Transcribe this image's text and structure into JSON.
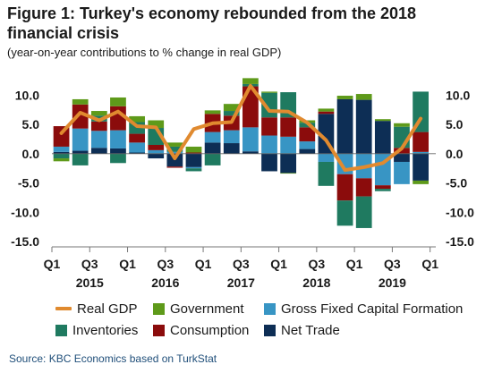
{
  "header": {
    "title": "Figure 1: Turkey's economy rebounded from the 2018 financial crisis",
    "subtitle": "(year-on-year contributions to % change in real GDP)"
  },
  "source": "Source: KBC Economics based on TurkStat",
  "colors": {
    "real_gdp": "#e08a2f",
    "government": "#5e9a1a",
    "gfcf": "#3895c4",
    "inventories": "#1f7a60",
    "consumption": "#8b0c0c",
    "net_trade": "#0d2e55"
  },
  "chart_data": {
    "type": "bar",
    "title": "Figure 1: Turkey's economy rebounded from the 2018 financial crisis",
    "subtitle": "(year-on-year contributions to % change in real GDP)",
    "stacked": true,
    "ylim": [
      -15,
      12.5
    ],
    "yticks": [
      10.0,
      5.0,
      0.0,
      -5.0,
      -10.0,
      -15.0
    ],
    "ytick_labels": [
      "10.0",
      "5.0",
      "0.0",
      "-5.0",
      "-10.0",
      "-15.0"
    ],
    "dual_y_axis": true,
    "grid": false,
    "x_tick_labels": [
      "Q1",
      "Q3",
      "Q1",
      "Q3",
      "Q1",
      "Q3",
      "Q1",
      "Q3",
      "Q1",
      "Q3",
      "Q1"
    ],
    "year_labels": [
      "2015",
      "2016",
      "2017",
      "2018",
      "2019"
    ],
    "categories": [
      "2015Q1",
      "2015Q2",
      "2015Q3",
      "2015Q4",
      "2016Q1",
      "2016Q2",
      "2016Q3",
      "2016Q4",
      "2017Q1",
      "2017Q2",
      "2017Q3",
      "2017Q4",
      "2018Q1",
      "2018Q2",
      "2018Q3",
      "2018Q4",
      "2019Q1",
      "2019Q2",
      "2019Q3",
      "2019Q4"
    ],
    "legend_position": "bottom",
    "series": [
      {
        "name": "Net Trade",
        "key": "net_trade",
        "kind": "bar",
        "values": [
          0.3,
          0.5,
          1.0,
          0.9,
          0.2,
          -0.8,
          -2.2,
          -2.3,
          1.9,
          1.8,
          0.4,
          -3.0,
          -3.3,
          0.8,
          6.8,
          9.3,
          9.2,
          5.6,
          -1.4,
          -4.6
        ]
      },
      {
        "name": "Gross Fixed Capital Formation",
        "key": "gfcf",
        "kind": "bar",
        "values": [
          0.9,
          3.8,
          2.9,
          3.1,
          1.7,
          0.6,
          0.3,
          -0.2,
          1.8,
          2.2,
          4.1,
          3.1,
          2.9,
          1.3,
          -1.4,
          -3.5,
          -4.2,
          -5.4,
          -3.8,
          0.3
        ]
      },
      {
        "name": "Consumption",
        "key": "consumption",
        "kind": "bar",
        "values": [
          3.5,
          4.1,
          1.6,
          4.1,
          1.5,
          0.9,
          -0.2,
          0.2,
          3.1,
          2.5,
          7.0,
          3.1,
          3.3,
          2.4,
          0.4,
          -4.5,
          -3.1,
          -0.6,
          1.0,
          3.4
        ]
      },
      {
        "name": "Inventories",
        "key": "inventories",
        "kind": "bar",
        "values": [
          -0.8,
          -2.0,
          1.0,
          -1.6,
          2.0,
          2.9,
          0.9,
          -0.5,
          -2.0,
          0.8,
          0.4,
          4.2,
          4.3,
          0.8,
          -4.1,
          -4.3,
          -5.4,
          -0.4,
          3.6,
          6.9
        ]
      },
      {
        "name": "Government",
        "key": "government",
        "kind": "bar",
        "values": [
          -0.5,
          0.9,
          0.8,
          1.5,
          1.0,
          1.3,
          0.7,
          1.0,
          0.6,
          1.2,
          1.0,
          0.2,
          -0.1,
          0.4,
          0.5,
          0.6,
          1.0,
          0.3,
          0.6,
          -0.6
        ]
      },
      {
        "name": "Real GDP",
        "key": "real_gdp",
        "kind": "line",
        "values": [
          3.5,
          7.0,
          5.7,
          7.2,
          4.7,
          4.5,
          -0.8,
          4.2,
          5.2,
          5.4,
          11.6,
          7.3,
          7.2,
          5.3,
          2.3,
          -2.8,
          -2.3,
          -1.6,
          0.9,
          6.0
        ]
      }
    ]
  },
  "legend": [
    {
      "key": "real_gdp",
      "label": "Real GDP",
      "kind": "line"
    },
    {
      "key": "government",
      "label": "Government",
      "kind": "bar"
    },
    {
      "key": "gfcf",
      "label": "Gross Fixed Capital Formation",
      "kind": "bar"
    },
    {
      "key": "inventories",
      "label": "Inventories",
      "kind": "bar"
    },
    {
      "key": "consumption",
      "label": "Consumption",
      "kind": "bar"
    },
    {
      "key": "net_trade",
      "label": "Net Trade",
      "kind": "bar"
    }
  ]
}
